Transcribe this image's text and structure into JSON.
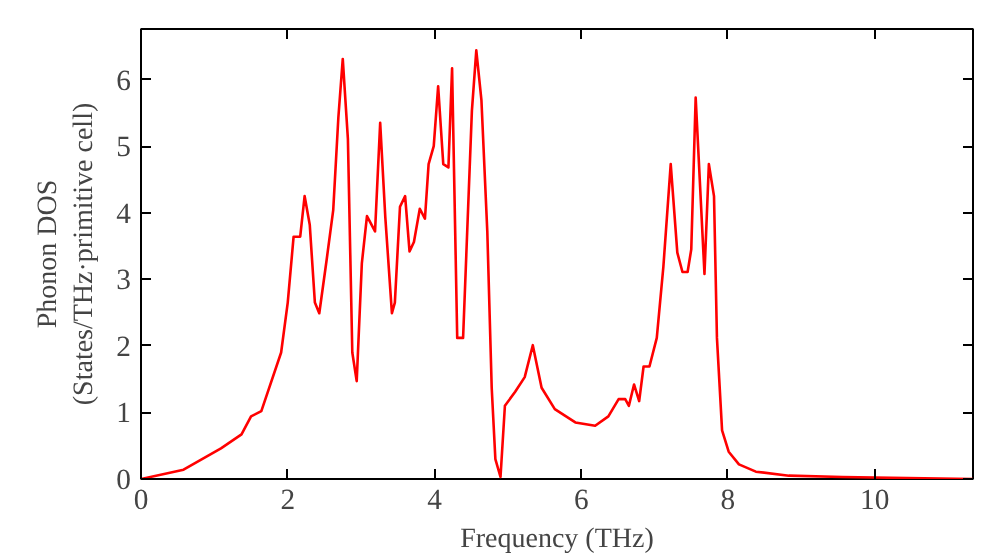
{
  "chart_data": {
    "type": "line",
    "xlabel": "Frequency (THz)",
    "ylabel": "Phonon DOS\n(States/THz·primitive cell)",
    "xlim": [
      0,
      11.34
    ],
    "ylim": [
      0,
      6.76
    ],
    "xticks": [
      0,
      2,
      4,
      6,
      8,
      10
    ],
    "yticks": [
      0,
      1,
      2,
      3,
      4,
      5,
      6
    ],
    "grid": false,
    "marker": "none",
    "line_style": "solid",
    "series": [
      {
        "color": "#ff0000",
        "x": [
          0,
          0.58,
          1.09,
          1.37,
          1.5,
          1.64,
          1.91,
          2.0,
          2.08,
          2.17,
          2.23,
          2.3,
          2.37,
          2.43,
          2.53,
          2.62,
          2.69,
          2.75,
          2.82,
          2.88,
          2.94,
          3.01,
          3.08,
          3.19,
          3.26,
          3.33,
          3.42,
          3.46,
          3.53,
          3.6,
          3.66,
          3.72,
          3.8,
          3.87,
          3.92,
          3.99,
          4.05,
          4.12,
          4.19,
          4.24,
          4.31,
          4.39,
          4.51,
          4.57,
          4.64,
          4.72,
          4.78,
          4.83,
          4.9,
          4.96,
          5.1,
          5.23,
          5.34,
          5.46,
          5.64,
          5.92,
          6.19,
          6.37,
          6.51,
          6.6,
          6.65,
          6.72,
          6.79,
          6.85,
          6.93,
          7.03,
          7.12,
          7.22,
          7.31,
          7.38,
          7.45,
          7.5,
          7.56,
          7.68,
          7.74,
          7.81,
          7.85,
          7.92,
          8.01,
          8.15,
          8.38,
          8.83,
          9.56,
          11.34
        ],
        "values": [
          0,
          0.14,
          0.46,
          0.67,
          0.94,
          1.02,
          1.9,
          2.65,
          3.64,
          3.64,
          4.25,
          3.82,
          2.65,
          2.49,
          3.29,
          4.04,
          5.43,
          6.31,
          5.11,
          1.9,
          1.47,
          3.24,
          3.95,
          3.72,
          5.35,
          3.93,
          2.49,
          2.65,
          4.09,
          4.25,
          3.42,
          3.56,
          4.06,
          3.91,
          4.73,
          5.0,
          5.9,
          4.73,
          4.68,
          6.17,
          2.12,
          2.12,
          5.53,
          6.44,
          5.69,
          3.72,
          1.37,
          0.3,
          0.03,
          1.1,
          1.31,
          1.53,
          2.01,
          1.37,
          1.05,
          0.85,
          0.8,
          0.94,
          1.2,
          1.2,
          1.1,
          1.42,
          1.17,
          1.69,
          1.69,
          2.12,
          3.19,
          4.73,
          3.4,
          3.11,
          3.11,
          3.45,
          5.73,
          3.08,
          4.73,
          4.25,
          2.12,
          0.73,
          0.41,
          0.22,
          0.11,
          0.05,
          0.03,
          0.0
        ]
      }
    ]
  }
}
